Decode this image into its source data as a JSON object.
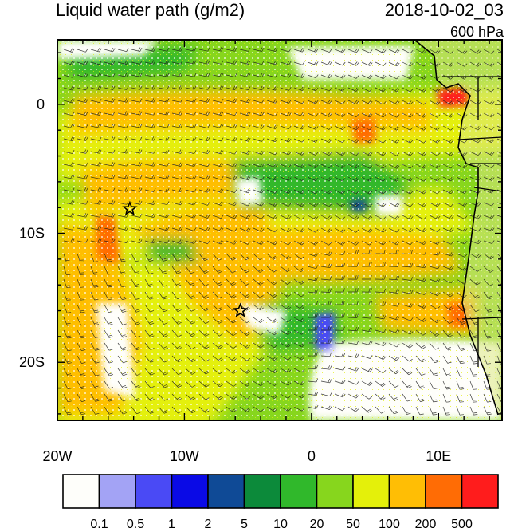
{
  "title_left": "Liquid water path (g/m2)",
  "title_right": "2018-10-02_03",
  "level_label": "600 hPa",
  "map": {
    "lon_range": [
      -20,
      15
    ],
    "lat_range": [
      -24.5,
      5
    ],
    "x_ticks": [
      {
        "label": "20W",
        "lon": -20
      },
      {
        "label": "10W",
        "lon": -10
      },
      {
        "label": "0",
        "lon": 0
      },
      {
        "label": "10E",
        "lon": 10
      }
    ],
    "y_ticks": [
      {
        "label": "0",
        "lat": 0
      },
      {
        "label": "10S",
        "lat": -10
      },
      {
        "label": "20S",
        "lat": -20
      }
    ],
    "markers": [
      {
        "name": "star",
        "lon": -14.3,
        "lat": -8.1
      },
      {
        "name": "star",
        "lon": -5.6,
        "lat": -16.0
      }
    ]
  },
  "colorbar": {
    "colors": [
      "#fefefa",
      "#a3a3f5",
      "#4a4af5",
      "#0a0ae6",
      "#0f4a96",
      "#0c8a3a",
      "#30b82b",
      "#87d61d",
      "#e4f00a",
      "#ffbe05",
      "#ff6c05",
      "#ff1c1c"
    ],
    "labels": [
      "0.1",
      "0.5",
      "1",
      "2",
      "5",
      "10",
      "20",
      "50",
      "100",
      "200",
      "500"
    ]
  }
}
